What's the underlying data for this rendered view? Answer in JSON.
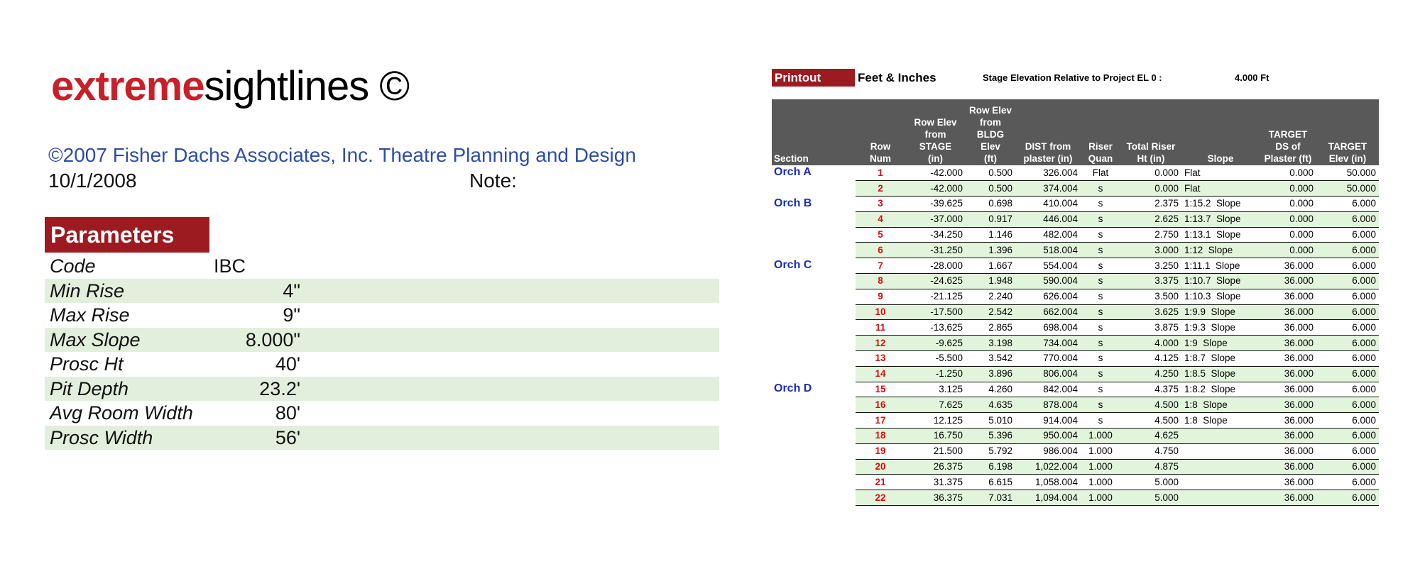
{
  "logo": {
    "part1": "extreme",
    "part2": "sightlines ©"
  },
  "copyright": "©2007 Fisher Dachs Associates, Inc. Theatre Planning and Design",
  "date": "10/1/2008",
  "note_label": "Note:",
  "parameters": {
    "title": "Parameters",
    "rows": [
      [
        "Code",
        "IBC"
      ],
      [
        "Min Rise",
        "4\""
      ],
      [
        "Max Rise",
        "9\""
      ],
      [
        "Max Slope",
        "8.000\""
      ],
      [
        "Prosc Ht",
        "40'"
      ],
      [
        "Pit Depth",
        "23.2'"
      ],
      [
        "Avg Room Width",
        "80'"
      ],
      [
        "Prosc Width",
        "56'"
      ]
    ]
  },
  "printout": {
    "label": "Printout",
    "units": "Feet & Inches",
    "stage_elev_label": "Stage Elevation Relative to Project EL 0 :",
    "stage_elev_value": "4.000 Ft"
  },
  "table": {
    "headers": [
      "Section",
      "Row\nNum",
      "Row Elev\nfrom\nSTAGE\n(in)",
      "Row Elev\nfrom BLDG\nElev\n(ft)",
      "DIST from\nplaster (in)",
      "Riser\nQuan",
      "Total Riser\nHt (in)",
      "Slope",
      "TARGET\nDS of\nPlaster (ft)",
      "TARGET\nElev (in)"
    ],
    "rows": [
      [
        "Orch A",
        "1",
        "-42.000",
        "0.500",
        "326.004",
        "Flat",
        "0.000",
        "Flat",
        "0.000",
        "50.000"
      ],
      [
        null,
        "2",
        "-42.000",
        "0.500",
        "374.004",
        "s",
        "0.000",
        "Flat",
        "0.000",
        "50.000"
      ],
      [
        "Orch B",
        "3",
        "-39.625",
        "0.698",
        "410.004",
        "s",
        "2.375",
        "1:15.2  Slope",
        "0.000",
        "6.000"
      ],
      [
        null,
        "4",
        "-37.000",
        "0.917",
        "446.004",
        "s",
        "2.625",
        "1:13.7  Slope",
        "0.000",
        "6.000"
      ],
      [
        null,
        "5",
        "-34.250",
        "1.146",
        "482.004",
        "s",
        "2.750",
        "1:13.1  Slope",
        "0.000",
        "6.000"
      ],
      [
        null,
        "6",
        "-31.250",
        "1.396",
        "518.004",
        "s",
        "3.000",
        "1:12  Slope",
        "0.000",
        "6.000"
      ],
      [
        "Orch C",
        "7",
        "-28.000",
        "1.667",
        "554.004",
        "s",
        "3.250",
        "1:11.1  Slope",
        "36.000",
        "6.000"
      ],
      [
        null,
        "8",
        "-24.625",
        "1.948",
        "590.004",
        "s",
        "3.375",
        "1:10.7  Slope",
        "36.000",
        "6.000"
      ],
      [
        null,
        "9",
        "-21.125",
        "2.240",
        "626.004",
        "s",
        "3.500",
        "1:10.3  Slope",
        "36.000",
        "6.000"
      ],
      [
        null,
        "10",
        "-17.500",
        "2.542",
        "662.004",
        "s",
        "3.625",
        "1:9.9  Slope",
        "36.000",
        "6.000"
      ],
      [
        null,
        "11",
        "-13.625",
        "2.865",
        "698.004",
        "s",
        "3.875",
        "1:9.3  Slope",
        "36.000",
        "6.000"
      ],
      [
        null,
        "12",
        "-9.625",
        "3.198",
        "734.004",
        "s",
        "4.000",
        "1:9  Slope",
        "36.000",
        "6.000"
      ],
      [
        null,
        "13",
        "-5.500",
        "3.542",
        "770.004",
        "s",
        "4.125",
        "1:8.7  Slope",
        "36.000",
        "6.000"
      ],
      [
        null,
        "14",
        "-1.250",
        "3.896",
        "806.004",
        "s",
        "4.250",
        "1:8.5  Slope",
        "36.000",
        "6.000"
      ],
      [
        "Orch D",
        "15",
        "3.125",
        "4.260",
        "842.004",
        "s",
        "4.375",
        "1:8.2  Slope",
        "36.000",
        "6.000"
      ],
      [
        null,
        "16",
        "7.625",
        "4.635",
        "878.004",
        "s",
        "4.500",
        "1:8  Slope",
        "36.000",
        "6.000"
      ],
      [
        null,
        "17",
        "12.125",
        "5.010",
        "914.004",
        "s",
        "4.500",
        "1:8  Slope",
        "36.000",
        "6.000"
      ],
      [
        null,
        "18",
        "16.750",
        "5.396",
        "950.004",
        "1.000",
        "4.625",
        null,
        "36.000",
        "6.000"
      ],
      [
        null,
        "19",
        "21.500",
        "5.792",
        "986.004",
        "1.000",
        "4.750",
        null,
        "36.000",
        "6.000"
      ],
      [
        null,
        "20",
        "26.375",
        "6.198",
        "1,022.004",
        "1.000",
        "4.875",
        null,
        "36.000",
        "6.000"
      ],
      [
        null,
        "21",
        "31.375",
        "6.615",
        "1,058.004",
        "1.000",
        "5.000",
        null,
        "36.000",
        "6.000"
      ],
      [
        null,
        "22",
        "36.375",
        "7.031",
        "1,094.004",
        "1.000",
        "5.000",
        null,
        "36.000",
        "6.000"
      ]
    ]
  }
}
